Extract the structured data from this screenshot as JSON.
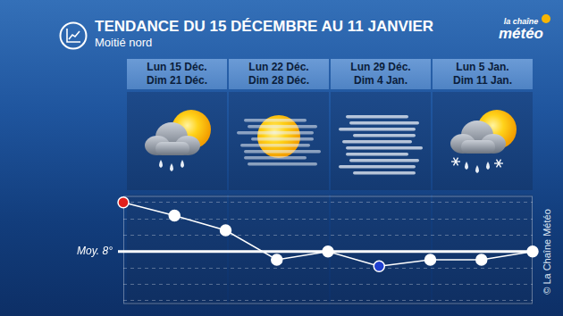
{
  "chart_data": {
    "type": "line",
    "title": "TENDANCE DU 15 DÉCEMBRE AU 11 JANVIER",
    "subtitle": "Moitié nord",
    "periods": [
      [
        "Lun 15 Déc.",
        "Dim 21 Déc."
      ],
      [
        "Lun 22 Déc.",
        "Dim 28 Déc."
      ],
      [
        "Lun 29 Déc.",
        "Dim 4 Jan."
      ],
      [
        "Lun 5 Jan.",
        "Dim 11 Jan."
      ]
    ],
    "categories": [
      null,
      null,
      null,
      null,
      null,
      null,
      null,
      null,
      null
    ],
    "values": [
      11,
      10.2,
      9.3,
      7.5,
      8,
      7.1,
      7.5,
      7.5,
      8
    ],
    "color": "#ffffff",
    "colors": [
      "#e0201b",
      "#ffffff",
      "#ffffff",
      "#ffffff",
      "#ffffff",
      "#1f3fd0",
      "#ffffff",
      "#ffffff",
      "#ffffff"
    ],
    "marker": "circle",
    "average": {
      "value": 8,
      "label": "Moy. 8°"
    },
    "ylim": [
      4.8,
      11.4
    ],
    "yticks": [
      5,
      6,
      7,
      8,
      9,
      10,
      11
    ],
    "grid": true,
    "tick_labels": false
  },
  "brand": [
    "la chaîne",
    "météo"
  ],
  "credit": "© La Chaîne Météo"
}
